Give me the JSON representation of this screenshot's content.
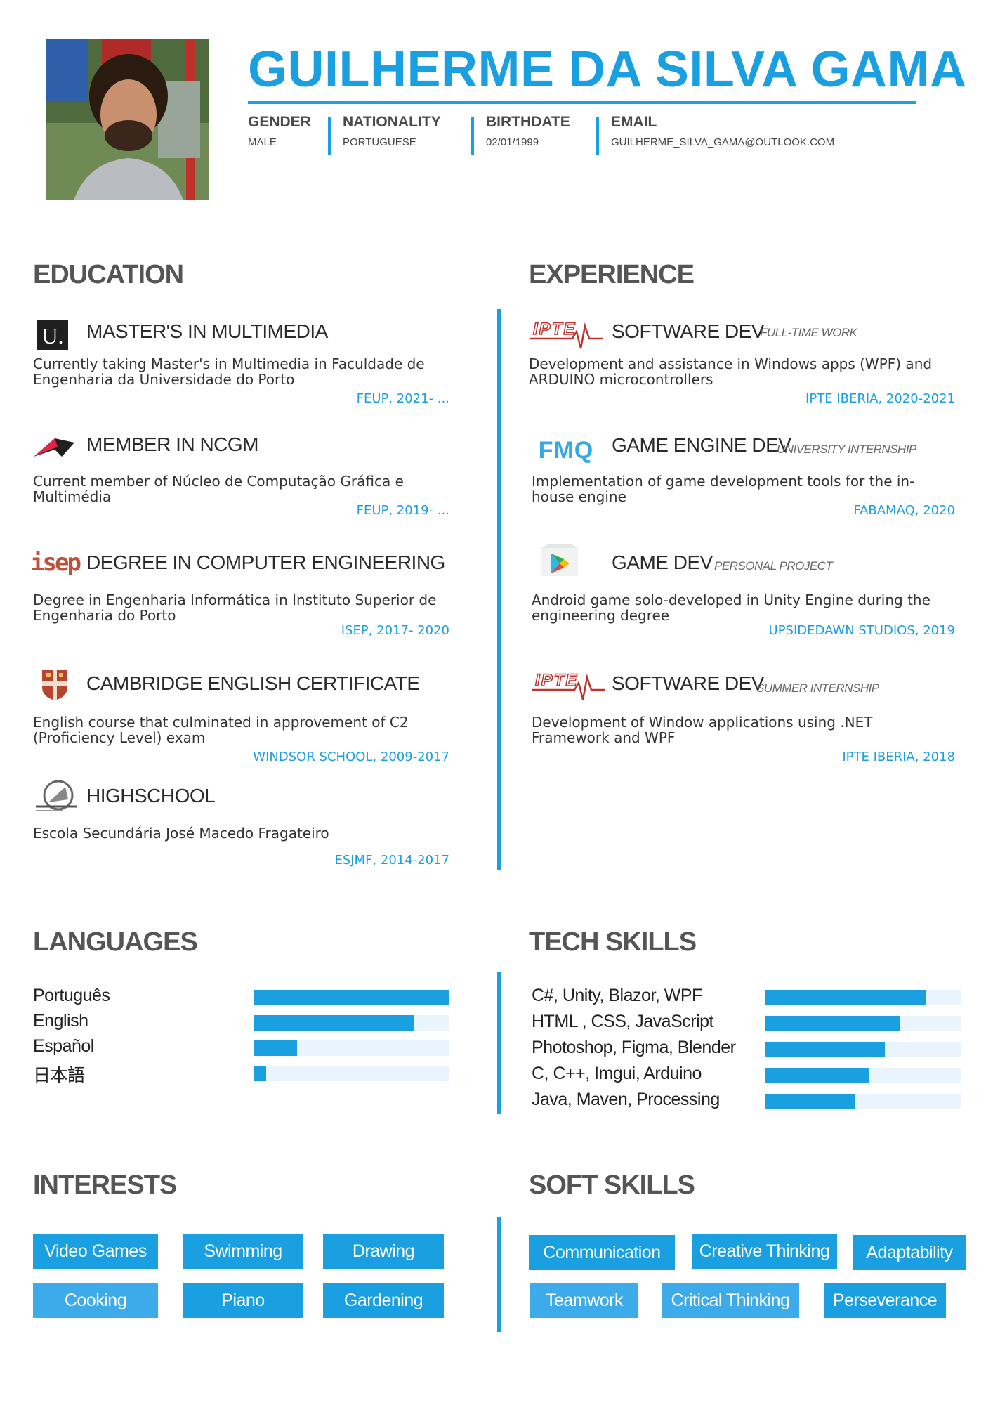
{
  "header": {
    "name": "GUILHERME DA SILVA GAMA",
    "info": [
      {
        "label": "GENDER",
        "value": "MALE"
      },
      {
        "label": "NATIONALITY",
        "value": "PORTUGUESE"
      },
      {
        "label": "BIRTHDATE",
        "value": "02/01/1999"
      },
      {
        "label": "EMAIL",
        "value": "GUILHERME_SILVA_GAMA@OUTLOOK.COM"
      }
    ]
  },
  "education": {
    "title": "EDUCATION",
    "items": [
      {
        "logo": "u-porto-logo",
        "title": "MASTER'S IN MULTIMEDIA",
        "desc": "Currently taking Master's in Multimedia in Faculdade de Engenharia da Universidade do Porto",
        "where": "FEUP, 2021- ..."
      },
      {
        "logo": "ncgm-logo",
        "title": "MEMBER IN NCGM",
        "desc": "Current member of Núcleo de Computação Gráfica e Multimédia",
        "where": "FEUP, 2019- ..."
      },
      {
        "logo": "isep-logo",
        "logo_text": "isep",
        "title": "DEGREE IN COMPUTER ENGINEERING",
        "desc": "Degree in Engenharia Informática in Instituto Superior de Engenharia do Porto",
        "where": "ISEP, 2017- 2020"
      },
      {
        "logo": "cambridge-crest-logo",
        "title": "CAMBRIDGE ENGLISH CERTIFICATE",
        "desc": "English course that culminated in approvement of C2 (Proficiency Level) exam",
        "where": "WINDSOR SCHOOL, 2009-2017"
      },
      {
        "logo": "esjmf-logo",
        "title": "HIGHSCHOOL",
        "desc": "Escola Secundária José Macedo Fragateiro",
        "where": "ESJMF, 2014-2017"
      }
    ]
  },
  "experience": {
    "title": "EXPERIENCE",
    "items": [
      {
        "logo": "ipte-logo",
        "logo_text": "IPTE",
        "title": "SOFTWARE DEV",
        "type": "FULL-TIME WORK",
        "desc": "Development and  assistance in Windows apps (WPF) and ARDUINO microcontrollers",
        "where": "IPTE IBERIA, 2020-2021"
      },
      {
        "logo": "fmq-logo",
        "logo_text": "FMQ",
        "title": "GAME ENGINE DEV",
        "type": "UNIVERSITY INTERNSHIP",
        "desc": "Implementation of  game development tools for the in-house engine",
        "where": "FABAMAQ, 2020"
      },
      {
        "logo": "google-play-logo",
        "title": "GAME DEV",
        "type": "PERSONAL PROJECT",
        "desc": "Android game solo-developed in Unity Engine during the engineering degree",
        "where": "UPSIDEDAWN STUDIOS, 2019"
      },
      {
        "logo": "ipte-logo",
        "logo_text": "IPTE",
        "title": "SOFTWARE DEV",
        "type": "SUMMER INTERNSHIP",
        "desc": "Development of Window applications using .NET Framework and WPF",
        "where": "IPTE IBERIA, 2018"
      }
    ]
  },
  "languages": {
    "title": "LANGUAGES",
    "items": [
      {
        "label": "Português",
        "level": 1.0
      },
      {
        "label": "English",
        "level": 0.82
      },
      {
        "label": "Español",
        "level": 0.22
      },
      {
        "label": "日本語",
        "level": 0.06
      }
    ]
  },
  "tech_skills": {
    "title": "TECH SKILLS",
    "items": [
      {
        "label": "C#, Unity,  Blazor,  WPF",
        "level": 0.82
      },
      {
        "label": "HTML , CSS, JavaScript",
        "level": 0.69
      },
      {
        "label": "Photoshop,  Figma,  Blender",
        "level": 0.61
      },
      {
        "label": "C, C++,  Imgui,  Arduino",
        "level": 0.53
      },
      {
        "label": "Java,  Maven,  Processing",
        "level": 0.46
      }
    ]
  },
  "interests": {
    "title": "INTERESTS",
    "items": [
      "Video Games",
      "Swimming",
      "Drawing",
      "Cooking",
      "Piano",
      "Gardening"
    ]
  },
  "soft_skills": {
    "title": "SOFT SKILLS",
    "items": [
      "Communication",
      "Creative Thinking",
      "Adaptability",
      "Teamwork",
      "Critical Thinking",
      "Perseverance"
    ]
  },
  "colors": {
    "accent": "#1a9fe0",
    "track": "#e9f4fc",
    "heading": "#555555"
  }
}
